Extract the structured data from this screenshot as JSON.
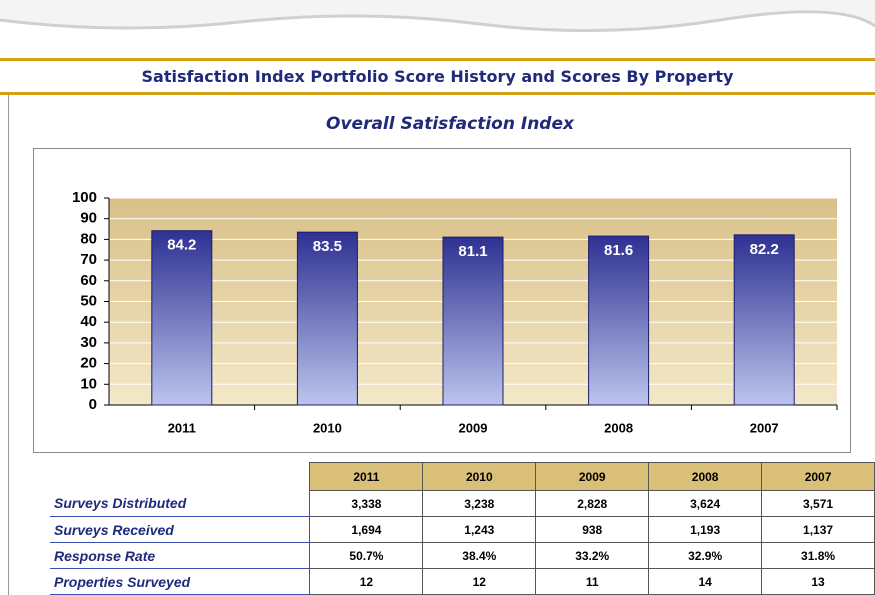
{
  "heading": "Satisfaction Index Portfolio Score History and Scores By Property",
  "chart_data": {
    "type": "bar",
    "title": "Overall Satisfaction Index",
    "categories": [
      "2011",
      "2010",
      "2009",
      "2008",
      "2007"
    ],
    "values": [
      84.2,
      83.5,
      81.1,
      81.6,
      82.2
    ],
    "color": "#2e3192",
    "ylim": [
      0,
      100
    ],
    "yticks": [
      0,
      10,
      20,
      30,
      40,
      50,
      60,
      70,
      80,
      90,
      100
    ],
    "grid": true
  },
  "table": {
    "columns": [
      "2011",
      "2010",
      "2009",
      "2008",
      "2007"
    ],
    "rows": [
      [
        "Surveys Distributed",
        "3,338",
        "3,238",
        "2,828",
        "3,624",
        "3,571"
      ],
      [
        "Surveys Received",
        "1,694",
        "1,243",
        "938",
        "1,193",
        "1,137"
      ],
      [
        "Response Rate",
        "50.7%",
        "38.4%",
        "33.2%",
        "32.9%",
        "31.8%"
      ],
      [
        "Properties Surveyed",
        "12",
        "12",
        "11",
        "14",
        "13"
      ]
    ]
  }
}
